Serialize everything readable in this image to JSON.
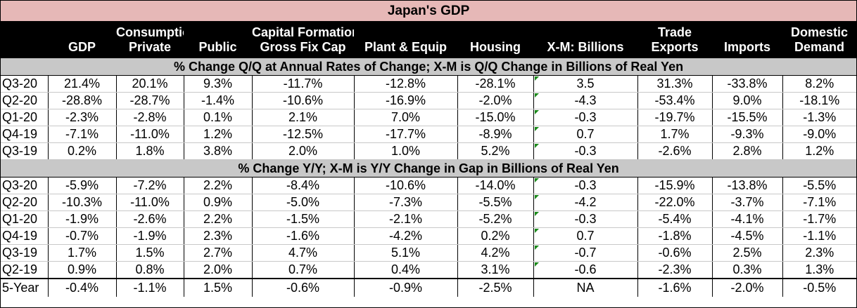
{
  "title": "Japan's GDP",
  "header_row1": [
    "",
    "",
    "Consumption",
    "",
    "Capital Formation",
    "",
    "",
    "",
    "Trade",
    "",
    "Domestic"
  ],
  "header_row2": [
    "",
    "GDP",
    "Private",
    "Public",
    "Gross Fix Cap",
    "Plant & Equip",
    "Housing",
    "X-M: Billions",
    "Exports",
    "Imports",
    "Demand"
  ],
  "section_qq": "% Change Q/Q at Annual Rates of Change; X-M is Q/Q Change in Billions of Real Yen",
  "rows_qq": [
    [
      "Q3-20",
      "21.4%",
      "20.1%",
      "9.3%",
      "-11.7%",
      "-12.8%",
      "-28.1%",
      "3.5",
      "31.3%",
      "-33.8%",
      "8.2%"
    ],
    [
      "Q2-20",
      "-28.8%",
      "-28.7%",
      "-1.4%",
      "-10.6%",
      "-16.9%",
      "-2.0%",
      "-4.3",
      "-53.4%",
      "9.0%",
      "-18.1%"
    ],
    [
      "Q1-20",
      "-2.3%",
      "-2.8%",
      "0.1%",
      "2.1%",
      "7.0%",
      "-15.0%",
      "-0.3",
      "-19.7%",
      "-15.5%",
      "-1.3%"
    ],
    [
      "Q4-19",
      "-7.1%",
      "-11.0%",
      "1.2%",
      "-12.5%",
      "-17.7%",
      "-8.9%",
      "0.7",
      "1.7%",
      "-9.3%",
      "-9.0%"
    ],
    [
      "Q3-19",
      "0.2%",
      "1.8%",
      "3.8%",
      "2.0%",
      "1.0%",
      "5.2%",
      "-0.3",
      "-2.6%",
      "2.8%",
      "1.2%"
    ]
  ],
  "section_yy": "% Change Y/Y; X-M is Y/Y Change in Gap in Billions of Real Yen",
  "rows_yy": [
    [
      "Q3-20",
      "-5.9%",
      "-7.2%",
      "2.2%",
      "-8.4%",
      "-10.6%",
      "-14.0%",
      "-0.3",
      "-15.9%",
      "-13.8%",
      "-5.5%"
    ],
    [
      "Q2-20",
      "-10.3%",
      "-11.0%",
      "0.9%",
      "-5.0%",
      "-7.3%",
      "-5.5%",
      "-4.2",
      "-22.0%",
      "-3.7%",
      "-7.1%"
    ],
    [
      "Q1-20",
      "-1.9%",
      "-2.6%",
      "2.2%",
      "-1.5%",
      "-2.1%",
      "-5.2%",
      "-0.3",
      "-5.4%",
      "-4.1%",
      "-1.7%"
    ],
    [
      "Q4-19",
      "-0.7%",
      "-1.9%",
      "2.3%",
      "-1.6%",
      "-4.2%",
      "0.2%",
      "0.7",
      "-1.8%",
      "-4.5%",
      "-1.1%"
    ],
    [
      "Q3-19",
      "1.7%",
      "1.5%",
      "2.7%",
      "4.7%",
      "5.1%",
      "4.2%",
      "-0.7",
      "-0.6%",
      "2.5%",
      "2.3%"
    ],
    [
      "Q2-19",
      "0.9%",
      "0.8%",
      "2.0%",
      "0.7%",
      "0.4%",
      "3.1%",
      "-0.6",
      "-2.3%",
      "0.3%",
      "1.3%"
    ]
  ],
  "row_5yr": [
    "5-Year",
    "-0.4%",
    "-1.1%",
    "1.5%",
    "-0.6%",
    "-0.9%",
    "-2.5%",
    "NA",
    "-1.6%",
    "-2.0%",
    "-0.5%"
  ],
  "colors": {
    "title_bg": "#e6b8b7",
    "header_bg": "#000000",
    "section_bg": "#c8c8c8",
    "marker": "#1a8a1a"
  }
}
